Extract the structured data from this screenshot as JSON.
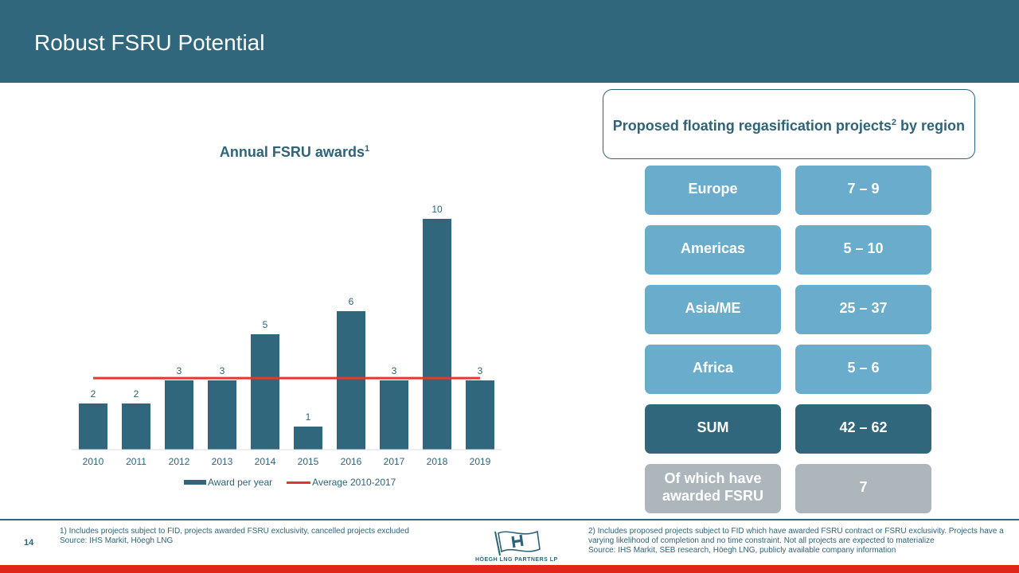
{
  "header": {
    "title": "Robust FSRU Potential"
  },
  "chart": {
    "title": "Annual FSRU awards",
    "title_sup": "1"
  },
  "chart_data": {
    "type": "bar",
    "title": "Annual FSRU awards",
    "categories": [
      "2010",
      "2011",
      "2012",
      "2013",
      "2014",
      "2015",
      "2016",
      "2017",
      "2018",
      "2019"
    ],
    "series": [
      {
        "name": "Award per year",
        "values": [
          2,
          2,
          3,
          3,
          5,
          1,
          6,
          3,
          10,
          3
        ],
        "color": "#30677c"
      }
    ],
    "reference_line": {
      "name": "Average 2010-2017",
      "value": 3.1,
      "color": "#e03a2f"
    },
    "ylim": [
      0,
      10
    ],
    "grid": false,
    "legend_position": "bottom"
  },
  "legend": {
    "bar_label": "Award per year",
    "line_label": "Average 2010-2017"
  },
  "regions": {
    "header": "Proposed floating regasification projects",
    "header_sup": "2",
    "header_suffix": " by region",
    "rows": [
      {
        "name": "Europe",
        "value": "7 – 9"
      },
      {
        "name": "Americas",
        "value": "5 – 10"
      },
      {
        "name": "Asia/ME",
        "value": "25 – 37"
      },
      {
        "name": "Africa",
        "value": "5 – 6"
      }
    ],
    "sum": {
      "name": "SUM",
      "value": "42 – 62"
    },
    "awarded": {
      "name": "Of which have awarded FSRU",
      "value": "7"
    }
  },
  "footer": {
    "page_number": "14",
    "note_left_1": "1) Includes projects subject to FID, projects awarded FSRU exclusivity, cancelled projects excluded",
    "note_left_2": "Source: IHS Markit, Höegh LNG",
    "note_right_1": "2) Includes proposed projects subject to FID which have awarded FSRU contract or FSRU exclusivity.  Projects have a varying likelihood of completion and no time constraint. Not all projects are expected to materialize",
    "note_right_2": "Source: IHS Markit, SEB research, Höegh LNG, publicly available company information",
    "logo_text": "HÖEGH LNG PARTNERS LP"
  },
  "colors": {
    "header_bg": "#30677c",
    "accent_red": "#e1251b",
    "cell_light": "#6aaccb",
    "cell_dark": "#30677c",
    "cell_grey": "#acb6bb"
  }
}
